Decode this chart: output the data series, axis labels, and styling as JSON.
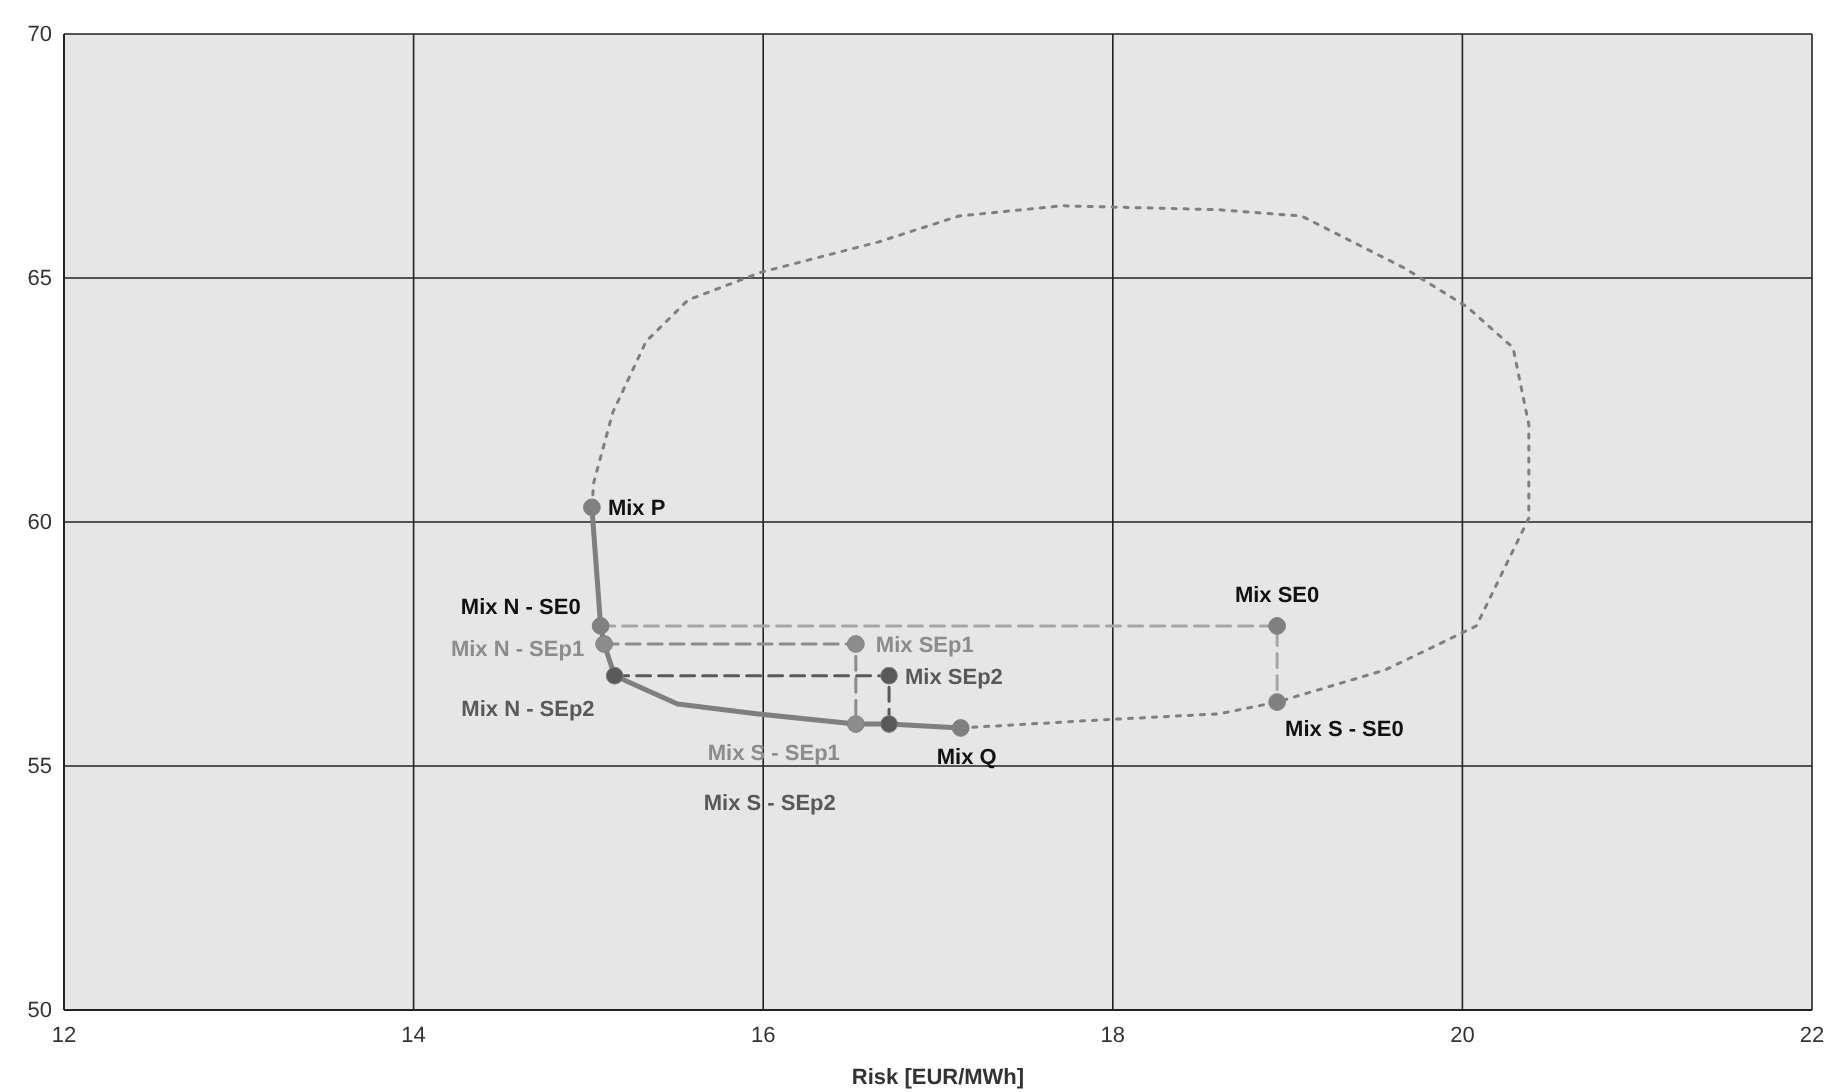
{
  "chart_data": {
    "type": "scatter",
    "xlabel": "Risk  [EUR/MWh]",
    "xlim": [
      12,
      22
    ],
    "xticks": [
      12,
      14,
      16,
      18,
      20,
      22
    ],
    "ylim": [
      50,
      70
    ],
    "yticks": [
      50,
      55,
      60,
      65,
      70
    ],
    "grid": true,
    "series": [
      {
        "type": "line",
        "line_style": "dotted",
        "marker": "none",
        "color": "#7f7f7f",
        "x": [
          17.13,
          17.91,
          18.61,
          18.94,
          19.56,
          20.08,
          20.38,
          20.38,
          20.29,
          20.03,
          19.67,
          19.08,
          18.6,
          17.71,
          17.12,
          16.66,
          15.99,
          15.57,
          15.33,
          15.14,
          15.03,
          15.02
        ],
        "values": [
          55.78,
          55.94,
          56.07,
          56.31,
          56.97,
          57.87,
          60.08,
          62.0,
          63.57,
          64.4,
          65.2,
          66.27,
          66.4,
          66.48,
          66.27,
          65.74,
          65.12,
          64.55,
          63.7,
          62.25,
          60.8,
          60.3
        ]
      },
      {
        "type": "line",
        "line_style": "dashed",
        "marker": "none",
        "color": "#a6a6a6",
        "x": [
          15.07,
          18.94,
          18.94
        ],
        "values": [
          57.87,
          57.87,
          56.31
        ]
      },
      {
        "type": "line",
        "line_style": "dashed",
        "marker": "none",
        "color": "#8c8c8c",
        "x": [
          15.09,
          16.53,
          16.53
        ],
        "values": [
          57.5,
          57.5,
          55.86
        ]
      },
      {
        "type": "line",
        "line_style": "dashed",
        "marker": "none",
        "color": "#595959",
        "x": [
          15.15,
          16.72,
          16.72
        ],
        "values": [
          56.85,
          56.85,
          55.86
        ]
      },
      {
        "type": "line",
        "line_style": "solid",
        "marker": "none",
        "color": "#7f7f7f",
        "x": [
          15.02,
          15.07,
          15.09,
          15.15,
          15.51,
          15.96,
          16.53,
          16.72,
          17.13
        ],
        "values": [
          60.3,
          57.87,
          57.5,
          56.85,
          56.27,
          56.07,
          55.86,
          55.86,
          55.78
        ]
      },
      {
        "marker": "circle",
        "color": "#808080",
        "x": [
          15.02,
          15.07,
          15.09,
          15.15,
          16.53,
          16.72,
          17.13,
          16.53,
          16.72,
          18.94,
          18.94
        ],
        "values": [
          60.3,
          57.87,
          57.5,
          56.85,
          55.86,
          55.86,
          55.78,
          57.5,
          56.85,
          57.87,
          56.31
        ],
        "colors": [
          "#808080",
          "#808080",
          "#8c8c8c",
          "#595959",
          "#8c8c8c",
          "#595959",
          "#808080",
          "#8c8c8c",
          "#595959",
          "#808080",
          "#808080"
        ]
      }
    ],
    "annotations": [
      {
        "text": "Mix P",
        "x": 15.02,
        "y": 60.3
      },
      {
        "text": "Mix N - SE0",
        "x": 15.07,
        "y": 57.87
      },
      {
        "text": "Mix N - SEp1",
        "x": 15.09,
        "y": 57.5
      },
      {
        "text": "Mix N - SEp2",
        "x": 15.15,
        "y": 56.85
      },
      {
        "text": "Mix S - SEp1",
        "x": 16.53,
        "y": 55.86
      },
      "Mix S - SEp2",
      {
        "text": "Mix Q",
        "x": 17.13,
        "y": 55.78
      },
      {
        "text": "Mix SEp1",
        "x": 16.53,
        "y": 57.5
      },
      {
        "text": "Mix SEp2",
        "x": 16.72,
        "y": 56.85
      },
      {
        "text": "Mix SE0",
        "x": 18.94,
        "y": 57.87
      },
      {
        "text": "Mix S - SE0",
        "x": 18.94,
        "y": 56.31
      }
    ]
  }
}
